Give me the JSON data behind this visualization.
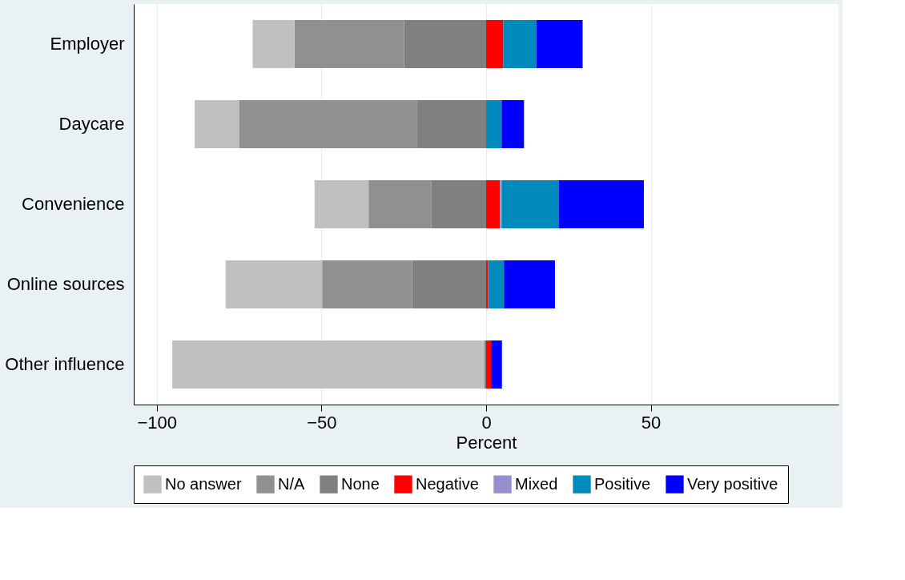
{
  "chart_data": {
    "type": "bar",
    "orientation": "horizontal",
    "stacked": true,
    "categories": [
      "Employer",
      "Daycare",
      "Convenience",
      "Online sources",
      "Other influence"
    ],
    "series": [
      {
        "name": "None",
        "color": "#808080",
        "values": [
          -24.9,
          -21.1,
          -16.7,
          -22.5,
          -0.5
        ]
      },
      {
        "name": "N/A",
        "color": "#909090",
        "values": [
          -33.3,
          -53.8,
          -19.0,
          -27.3,
          0
        ]
      },
      {
        "name": "No answer",
        "color": "#c0c0c0",
        "values": [
          -12.7,
          -13.6,
          -16.4,
          -29.3,
          -94.8
        ]
      },
      {
        "name": "Negative",
        "color": "#ff0000",
        "values": [
          5.2,
          0,
          4.2,
          0.6,
          1.5
        ]
      },
      {
        "name": "Mixed",
        "color": "#9490d0",
        "values": [
          0,
          0,
          0.5,
          0,
          0
        ]
      },
      {
        "name": "Positive",
        "color": "#008bbc",
        "values": [
          10.1,
          4.7,
          17.3,
          4.8,
          0
        ]
      },
      {
        "name": "Very positive",
        "color": "#0000ff",
        "values": [
          14.0,
          6.8,
          25.9,
          15.5,
          3.3
        ]
      }
    ],
    "xlabel": "Percent",
    "xlim": [
      -107,
      107
    ],
    "xticks": [
      -100,
      -50,
      0,
      50
    ],
    "grid": "x",
    "legend": "bottom"
  }
}
